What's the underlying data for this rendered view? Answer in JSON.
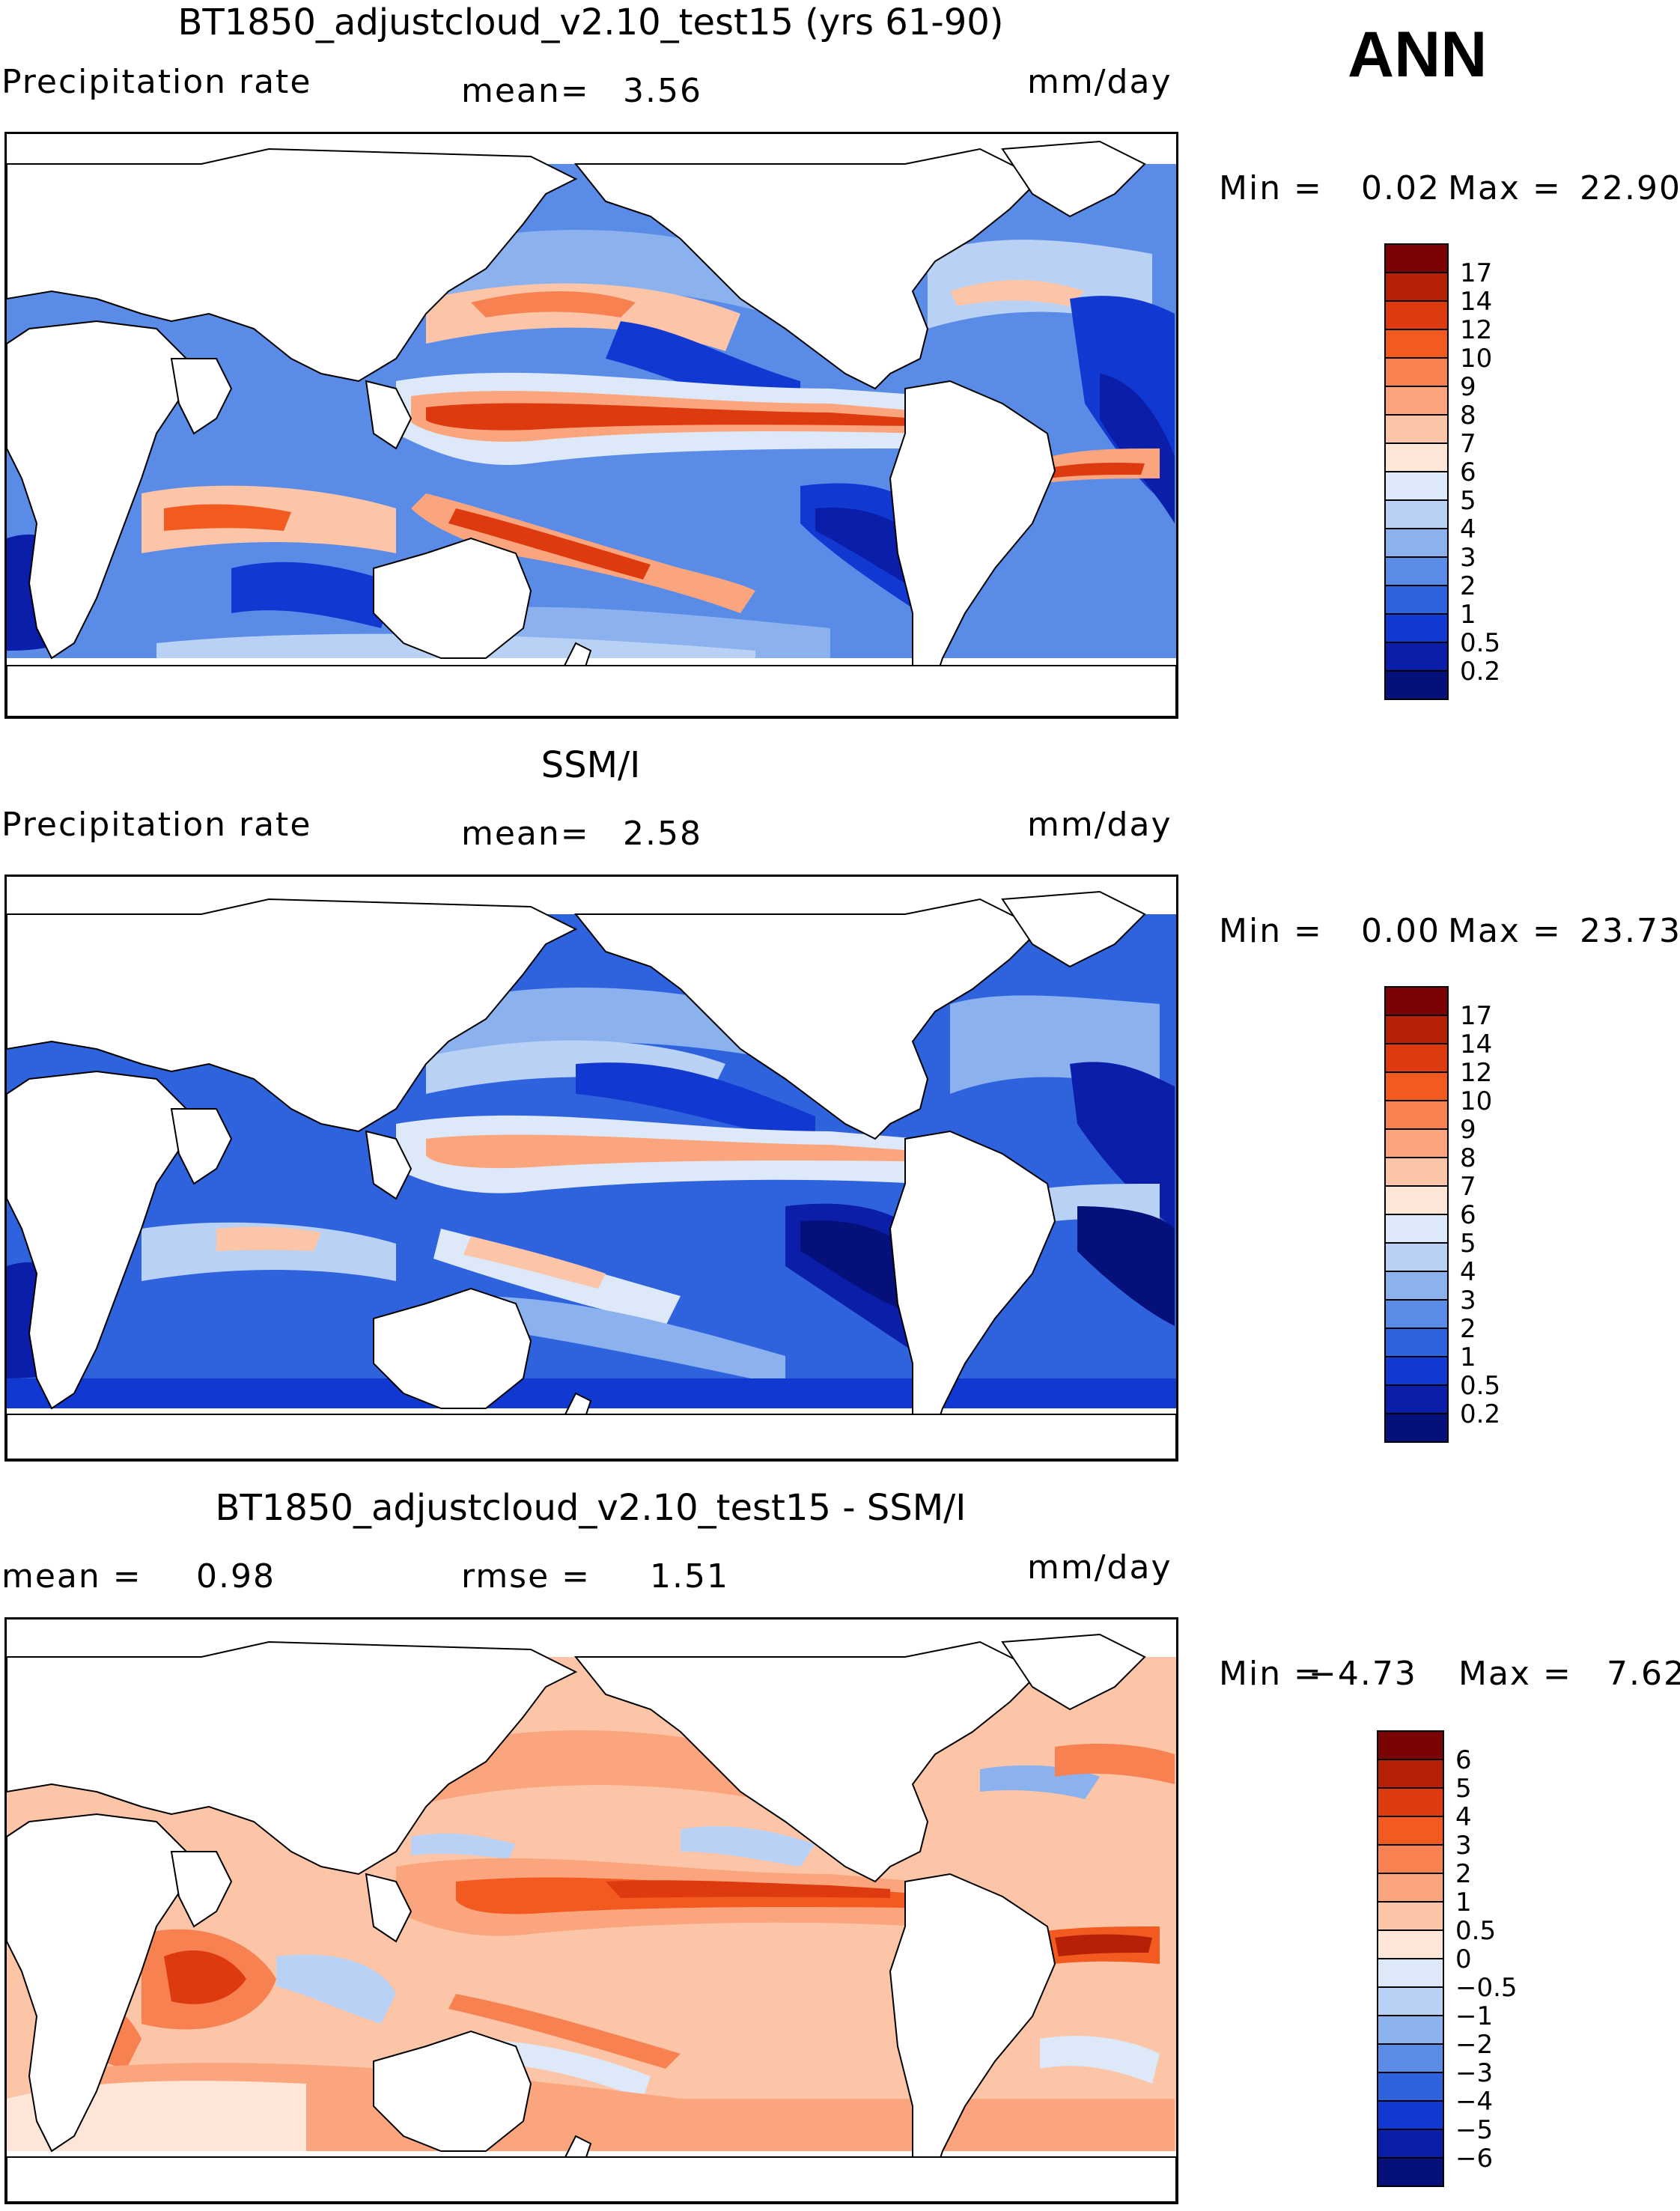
{
  "season": "ANN",
  "panels": [
    {
      "id": "model",
      "title": "BT1850_adjustcloud_v2.10_test15 (yrs 61-90)",
      "left_label": "Precipitation rate",
      "middle_label": "mean=",
      "middle_value": "3.56",
      "units": "mm/day",
      "min_label": "Min =",
      "min_value": "0.02",
      "max_label": "Max =",
      "max_value": "22.90",
      "colorbar": {
        "labels": [
          "17",
          "14",
          "12",
          "10",
          "9",
          "8",
          "7",
          "6",
          "5",
          "4",
          "3",
          "2",
          "1",
          "0.5",
          "0.2"
        ],
        "colors": [
          "#7a0403",
          "#b52006",
          "#de3a10",
          "#f25a20",
          "#f78150",
          "#faa57e",
          "#fcc5a8",
          "#fde6d7",
          "#dde9f8",
          "#b9d1f4",
          "#8bb1ee",
          "#5a8be6",
          "#2f63dd",
          "#1238d2",
          "#0a1eaa",
          "#05107a"
        ]
      }
    },
    {
      "id": "obs",
      "title": "SSM/I",
      "left_label": "Precipitation rate",
      "middle_label": "mean=",
      "middle_value": "2.58",
      "units": "mm/day",
      "min_label": "Min =",
      "min_value": "0.00",
      "max_label": "Max =",
      "max_value": "23.73",
      "colorbar": {
        "labels": [
          "17",
          "14",
          "12",
          "10",
          "9",
          "8",
          "7",
          "6",
          "5",
          "4",
          "3",
          "2",
          "1",
          "0.5",
          "0.2"
        ],
        "colors": [
          "#7a0403",
          "#b52006",
          "#de3a10",
          "#f25a20",
          "#f78150",
          "#faa57e",
          "#fcc5a8",
          "#fde6d7",
          "#dde9f8",
          "#b9d1f4",
          "#8bb1ee",
          "#5a8be6",
          "#2f63dd",
          "#1238d2",
          "#0a1eaa",
          "#05107a"
        ]
      }
    },
    {
      "id": "diff",
      "title": "BT1850_adjustcloud_v2.10_test15 - SSM/I",
      "left_label": "mean =",
      "left_value": "0.98",
      "middle_label": "rmse =",
      "middle_value": "1.51",
      "units": "mm/day",
      "min_label": "Min =",
      "min_value": "−4.73",
      "max_label": "Max =",
      "max_value": "7.62",
      "colorbar": {
        "labels": [
          "6",
          "5",
          "4",
          "3",
          "2",
          "1",
          "0.5",
          "0",
          "−0.5",
          "−1",
          "−2",
          "−3",
          "−4",
          "−5",
          "−6"
        ],
        "colors": [
          "#7a0403",
          "#b52006",
          "#de3a10",
          "#f25a20",
          "#f78150",
          "#faa57e",
          "#fcc5a8",
          "#fde6d7",
          "#dde9f8",
          "#b9d1f4",
          "#8bb1ee",
          "#5a8be6",
          "#2f63dd",
          "#1238d2",
          "#0a1eaa",
          "#05107a"
        ]
      }
    }
  ]
}
